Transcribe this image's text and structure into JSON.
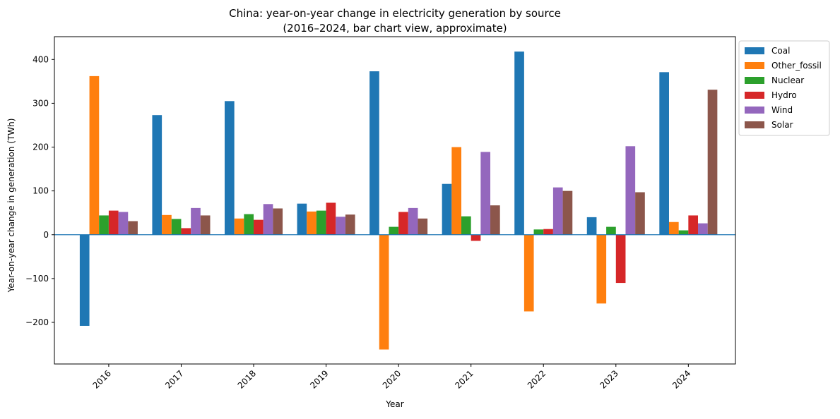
{
  "chart_data": {
    "type": "bar",
    "title_line1": "China: year-on-year change in electricity generation by source",
    "title_line2": "(2016–2024, bar chart view, approximate)",
    "xlabel": "Year",
    "ylabel": "Year-on-year change in generation (TWh)",
    "categories": [
      "2016",
      "2017",
      "2018",
      "2019",
      "2020",
      "2021",
      "2022",
      "2023",
      "2024"
    ],
    "ylim": [
      -295,
      452
    ],
    "yticks": [
      -200,
      -100,
      0,
      100,
      200,
      300,
      400
    ],
    "ytick_labels": [
      "−200",
      "−100",
      "0",
      "100",
      "200",
      "300",
      "400"
    ],
    "legend_position": "outside-top-right",
    "grid": false,
    "series": [
      {
        "name": "Coal",
        "color": "#1f77b4",
        "values": [
          -208,
          273,
          305,
          71,
          373,
          116,
          418,
          40,
          371
        ]
      },
      {
        "name": "Other_fossil",
        "color": "#ff7f0e",
        "values": [
          362,
          45,
          37,
          53,
          -262,
          200,
          -175,
          -157,
          29
        ]
      },
      {
        "name": "Nuclear",
        "color": "#2ca02c",
        "values": [
          44,
          36,
          47,
          55,
          18,
          42,
          12,
          18,
          10
        ]
      },
      {
        "name": "Hydro",
        "color": "#d62728",
        "values": [
          55,
          15,
          34,
          73,
          52,
          -14,
          13,
          -110,
          44
        ]
      },
      {
        "name": "Wind",
        "color": "#9467bd",
        "values": [
          52,
          61,
          70,
          41,
          61,
          189,
          108,
          202,
          26
        ]
      },
      {
        "name": "Solar",
        "color": "#8c564b",
        "values": [
          31,
          44,
          60,
          46,
          37,
          67,
          100,
          97,
          331
        ]
      }
    ]
  }
}
